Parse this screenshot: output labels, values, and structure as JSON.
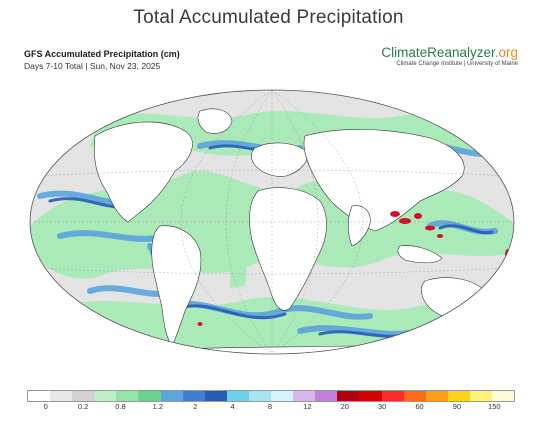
{
  "header": {
    "title": "Total Accumulated Precipitation",
    "subtitle": "GFS Accumulated Precipitation (cm)",
    "date_line": "Days 7-10 Total | Sun, Nov 23, 2025"
  },
  "brand": {
    "name_main": "ClimateReanalyzer",
    "name_suffix": ".org",
    "tagline": "Climate Change Institute | University of Maine"
  },
  "legend": {
    "colors": [
      "#ffffff",
      "#e8e8e8",
      "#d2d2d2",
      "#bfeec9",
      "#93e4a6",
      "#6ad48c",
      "#5aa5dc",
      "#3d7fd0",
      "#2a5bb8",
      "#6cd0e8",
      "#a6e4f2",
      "#d8f2fa",
      "#d8b6ec",
      "#c080dc",
      "#b00010",
      "#d40000",
      "#ff2a2a",
      "#ff6a1a",
      "#ff9e1a",
      "#ffd21a",
      "#fff27a",
      "#fffbd6"
    ],
    "ticks": [
      {
        "label": "0",
        "index": 1
      },
      {
        "label": "0.2",
        "index": 3
      },
      {
        "label": "0.8",
        "index": 5
      },
      {
        "label": "1.2",
        "index": 7
      },
      {
        "label": "2",
        "index": 9
      },
      {
        "label": "4",
        "index": 11
      },
      {
        "label": "8",
        "index": 13
      },
      {
        "label": "12",
        "index": 15
      },
      {
        "label": "20",
        "index": 17
      },
      {
        "label": "30",
        "index": 19
      },
      {
        "label": "60",
        "index": 21
      },
      {
        "label": "90",
        "index": 23
      },
      {
        "label": "150",
        "index": 25
      }
    ]
  },
  "map": {
    "projection": "Winkel Tripel (global)",
    "ocean_color": "#e6e6e6",
    "rain_light_color": "#a8eab7",
    "rain_medium_color": "#5aa5dc",
    "rain_heavy_color": "#2a5bb8",
    "rain_extreme_color": "#d4102a"
  }
}
